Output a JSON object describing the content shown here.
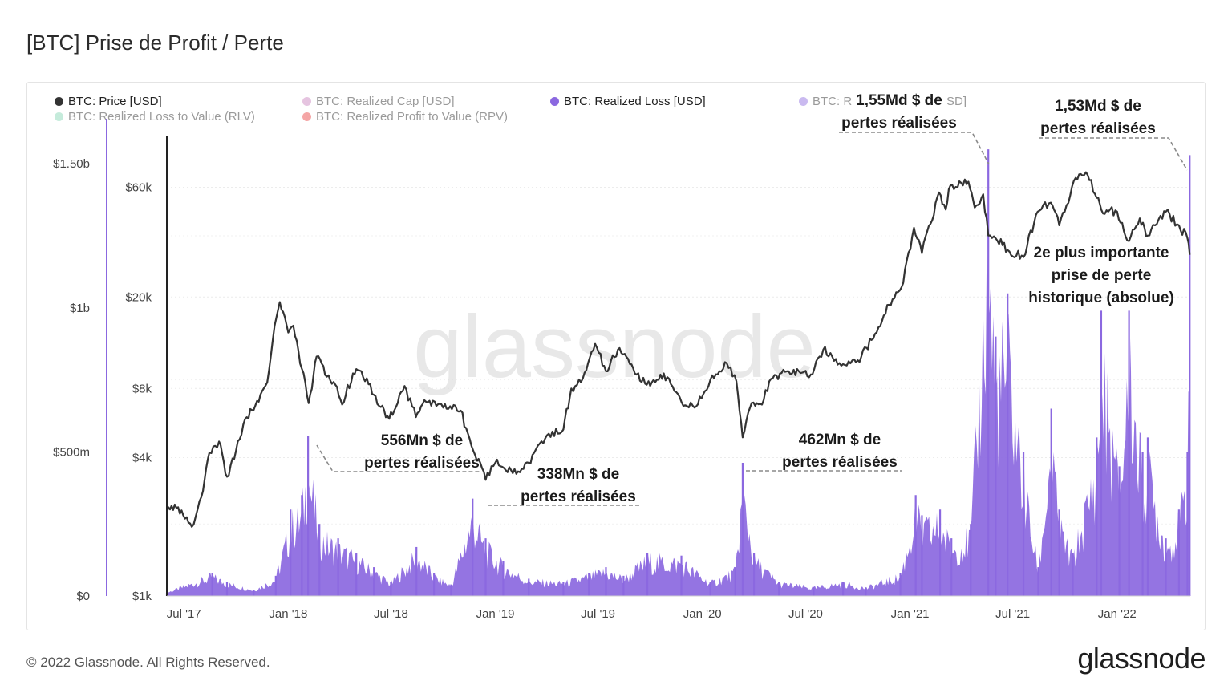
{
  "title": "[BTC] Prise de Profit / Perte",
  "legend": [
    {
      "label": "BTC: Price [USD]",
      "color": "#333333",
      "active": true
    },
    {
      "label": "BTC: Realized Cap [USD]",
      "color": "#c77dbb",
      "active": false
    },
    {
      "label": "BTC: Realized Loss [USD]",
      "color": "#8b68e0",
      "active": true
    },
    {
      "label": "BTC: R",
      "color": "#8b68e0",
      "active": false
    },
    {
      "label": "SD]",
      "color": "",
      "active": false
    },
    {
      "label": "BTC: Realized Loss to Value (RLV)",
      "color": "#7fd3b0",
      "active": false
    },
    {
      "label": "BTC: Realized Profit to Value (RPV)",
      "color": "#e83a3a",
      "active": false
    }
  ],
  "footer": {
    "copyright": "© 2022 Glassnode. All Rights Reserved.",
    "logo": "glassnode"
  },
  "watermark": "glassnode",
  "chart_data": {
    "type": "line",
    "x_ticks": [
      "Jul '17",
      "Jan '18",
      "Jul '18",
      "Jan '19",
      "Jul '19",
      "Jan '20",
      "Jul '20",
      "Jan '21",
      "Jul '21",
      "Jan '22"
    ],
    "y_left_label_ticks": [
      "$1.50b",
      "$1b",
      "$500m",
      "$0"
    ],
    "y_left_tick_values": [
      1.5,
      1.0,
      0.5,
      0
    ],
    "y_left_unit": "billion USD",
    "y_right_label_ticks": [
      "$60k",
      "$20k",
      "$8k",
      "$4k",
      "$1k"
    ],
    "y_right_tick_values": [
      60000,
      20000,
      8000,
      4000,
      1000
    ],
    "y_right_scale": "log",
    "grid": true,
    "legend_position": "top",
    "series": [
      {
        "name": "BTC: Price [USD]",
        "kind": "line",
        "axis": "right",
        "color": "#333333",
        "points": [
          [
            "2017-06-01",
            2300
          ],
          [
            "2017-06-15",
            2500
          ],
          [
            "2017-07-15",
            2000
          ],
          [
            "2017-08-01",
            2700
          ],
          [
            "2017-08-15",
            4200
          ],
          [
            "2017-09-01",
            4700
          ],
          [
            "2017-09-15",
            3300
          ],
          [
            "2017-10-01",
            4300
          ],
          [
            "2017-10-20",
            6000
          ],
          [
            "2017-11-10",
            7000
          ],
          [
            "2017-11-25",
            8500
          ],
          [
            "2017-12-08",
            15000
          ],
          [
            "2017-12-17",
            19000
          ],
          [
            "2018-01-01",
            14000
          ],
          [
            "2018-01-10",
            15000
          ],
          [
            "2018-02-06",
            6900
          ],
          [
            "2018-02-20",
            11000
          ],
          [
            "2018-03-10",
            9000
          ],
          [
            "2018-03-25",
            8300
          ],
          [
            "2018-04-06",
            6800
          ],
          [
            "2018-04-25",
            9300
          ],
          [
            "2018-05-10",
            9500
          ],
          [
            "2018-06-01",
            7500
          ],
          [
            "2018-06-28",
            5900
          ],
          [
            "2018-07-25",
            8200
          ],
          [
            "2018-08-14",
            6000
          ],
          [
            "2018-09-01",
            7000
          ],
          [
            "2018-10-01",
            6600
          ],
          [
            "2018-11-01",
            6400
          ],
          [
            "2018-11-20",
            4500
          ],
          [
            "2018-12-15",
            3200
          ],
          [
            "2019-01-01",
            3800
          ],
          [
            "2019-02-07",
            3400
          ],
          [
            "2019-03-01",
            3800
          ],
          [
            "2019-04-02",
            5000
          ],
          [
            "2019-05-01",
            5300
          ],
          [
            "2019-05-15",
            8000
          ],
          [
            "2019-06-01",
            8500
          ],
          [
            "2019-06-26",
            12500
          ],
          [
            "2019-07-15",
            9500
          ],
          [
            "2019-08-05",
            11800
          ],
          [
            "2019-09-01",
            9800
          ],
          [
            "2019-09-25",
            8300
          ],
          [
            "2019-10-25",
            9300
          ],
          [
            "2019-11-25",
            7000
          ],
          [
            "2019-12-18",
            6600
          ],
          [
            "2020-01-15",
            8700
          ],
          [
            "2020-02-13",
            10300
          ],
          [
            "2020-03-01",
            8600
          ],
          [
            "2020-03-12",
            4900
          ],
          [
            "2020-03-25",
            6600
          ],
          [
            "2020-04-15",
            6800
          ],
          [
            "2020-05-01",
            8800
          ],
          [
            "2020-06-01",
            9500
          ],
          [
            "2020-07-10",
            9200
          ],
          [
            "2020-08-01",
            11800
          ],
          [
            "2020-09-05",
            10200
          ],
          [
            "2020-10-01",
            10600
          ],
          [
            "2020-10-25",
            13000
          ],
          [
            "2020-11-25",
            18500
          ],
          [
            "2020-12-20",
            23000
          ],
          [
            "2021-01-08",
            40000
          ],
          [
            "2021-01-22",
            31000
          ],
          [
            "2021-02-21",
            57000
          ],
          [
            "2021-03-05",
            48000
          ],
          [
            "2021-03-13",
            61000
          ],
          [
            "2021-04-14",
            63500
          ],
          [
            "2021-04-25",
            49000
          ],
          [
            "2021-05-10",
            56000
          ],
          [
            "2021-05-19",
            37000
          ],
          [
            "2021-06-01",
            36000
          ],
          [
            "2021-06-22",
            32000
          ],
          [
            "2021-07-20",
            29800
          ],
          [
            "2021-08-14",
            47000
          ],
          [
            "2021-09-06",
            51500
          ],
          [
            "2021-09-21",
            41000
          ],
          [
            "2021-10-20",
            66000
          ],
          [
            "2021-11-10",
            68000
          ],
          [
            "2021-11-26",
            54000
          ],
          [
            "2021-12-04",
            48000
          ],
          [
            "2022-01-01",
            47000
          ],
          [
            "2022-01-22",
            35000
          ],
          [
            "2022-02-10",
            44000
          ],
          [
            "2022-02-24",
            37000
          ],
          [
            "2022-03-28",
            47000
          ],
          [
            "2022-04-20",
            41000
          ],
          [
            "2022-05-05",
            36000
          ],
          [
            "2022-05-09",
            30500
          ]
        ]
      },
      {
        "name": "BTC: Realized Loss [USD]",
        "kind": "area",
        "axis": "left",
        "color": "#8b68e0",
        "points": [
          [
            "2017-06-01",
            0.01
          ],
          [
            "2017-08-20",
            0.08
          ],
          [
            "2017-09-15",
            0.05
          ],
          [
            "2017-11-01",
            0.02
          ],
          [
            "2017-12-10",
            0.07
          ],
          [
            "2018-01-05",
            0.3
          ],
          [
            "2018-01-25",
            0.35
          ],
          [
            "2018-02-05",
            0.556
          ],
          [
            "2018-02-25",
            0.25
          ],
          [
            "2018-03-30",
            0.2
          ],
          [
            "2018-05-01",
            0.15
          ],
          [
            "2018-06-01",
            0.1
          ],
          [
            "2018-07-01",
            0.05
          ],
          [
            "2018-08-15",
            0.17
          ],
          [
            "2018-09-15",
            0.08
          ],
          [
            "2018-10-15",
            0.04
          ],
          [
            "2018-11-22",
            0.338
          ],
          [
            "2018-12-15",
            0.2
          ],
          [
            "2019-01-15",
            0.12
          ],
          [
            "2019-03-01",
            0.06
          ],
          [
            "2019-05-01",
            0.05
          ],
          [
            "2019-06-15",
            0.08
          ],
          [
            "2019-07-15",
            0.1
          ],
          [
            "2019-08-15",
            0.07
          ],
          [
            "2019-09-26",
            0.15
          ],
          [
            "2019-11-25",
            0.14
          ],
          [
            "2020-01-15",
            0.05
          ],
          [
            "2020-02-28",
            0.1
          ],
          [
            "2020-03-12",
            0.462
          ],
          [
            "2020-04-01",
            0.15
          ],
          [
            "2020-05-15",
            0.05
          ],
          [
            "2020-07-15",
            0.03
          ],
          [
            "2020-09-05",
            0.05
          ],
          [
            "2020-10-15",
            0.03
          ],
          [
            "2020-12-15",
            0.08
          ],
          [
            "2021-01-11",
            0.35
          ],
          [
            "2021-01-22",
            0.28
          ],
          [
            "2021-02-23",
            0.3
          ],
          [
            "2021-03-15",
            0.2
          ],
          [
            "2021-04-18",
            0.25
          ],
          [
            "2021-05-19",
            1.55
          ],
          [
            "2021-06-01",
            0.9
          ],
          [
            "2021-06-22",
            1.05
          ],
          [
            "2021-07-20",
            0.5
          ],
          [
            "2021-08-15",
            0.1
          ],
          [
            "2021-09-07",
            0.65
          ],
          [
            "2021-09-21",
            0.3
          ],
          [
            "2021-10-15",
            0.15
          ],
          [
            "2021-11-26",
            0.55
          ],
          [
            "2021-12-04",
            0.99
          ],
          [
            "2022-01-05",
            0.45
          ],
          [
            "2022-01-22",
            0.99
          ],
          [
            "2022-02-15",
            0.5
          ],
          [
            "2022-02-24",
            0.55
          ],
          [
            "2022-03-28",
            0.2
          ],
          [
            "2022-04-20",
            0.3
          ],
          [
            "2022-05-05",
            0.5
          ],
          [
            "2022-05-09",
            1.53
          ]
        ]
      }
    ],
    "annotations": [
      {
        "date": "2018-02-05",
        "value": 0.556,
        "lines": [
          "556Mn $ de",
          "pertes réalisées"
        ]
      },
      {
        "date": "2018-11-22",
        "value": 0.338,
        "lines": [
          "338Mn $ de",
          "pertes réalisées"
        ]
      },
      {
        "date": "2020-03-12",
        "value": 0.462,
        "lines": [
          "462Mn $ de",
          "pertes réalisées"
        ]
      },
      {
        "date": "2021-05-19",
        "value": 1.55,
        "lines": [
          "1,55Md $ de",
          "pertes réalisées"
        ]
      },
      {
        "date": "2022-05-09",
        "value": 1.53,
        "lines": [
          "1,53Md $ de",
          "pertes réalisées"
        ]
      },
      {
        "date": "2022-05-09",
        "value": 1.53,
        "lines": [
          "2e plus importante",
          "prise de perte",
          "historique (absolue)"
        ]
      }
    ]
  }
}
